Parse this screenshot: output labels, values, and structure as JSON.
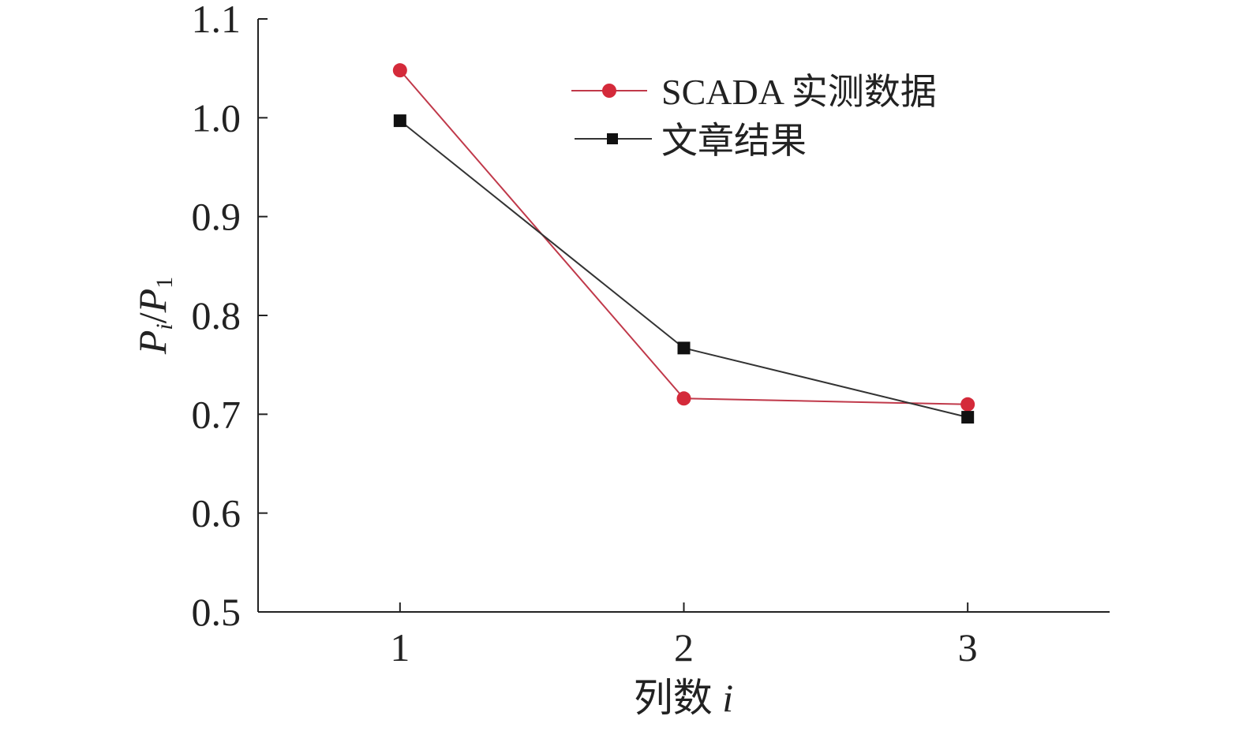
{
  "chart_data": {
    "type": "line",
    "x": [
      1,
      2,
      3
    ],
    "x_ticks": [
      "1",
      "2",
      "3"
    ],
    "xlim": [
      0.5,
      3.5
    ],
    "ylim": [
      0.5,
      1.1
    ],
    "y_ticks": [
      "0.5",
      "0.6",
      "0.7",
      "0.8",
      "0.9",
      "1.0",
      "1.1"
    ],
    "xlabel": {
      "text": "列数 ",
      "var": "i"
    },
    "ylabel": {
      "p": "P",
      "sub_i": "i",
      "slash": "/",
      "sub_1": "1"
    },
    "legend_position": "top-right",
    "series": [
      {
        "name": "SCADA 实测数据",
        "marker": "circle",
        "color": "#d42a3a",
        "line_color": "#c0394a",
        "values": [
          1.048,
          0.716,
          0.71
        ]
      },
      {
        "name": "文章结果",
        "marker": "square",
        "color": "#111111",
        "line_color": "#333333",
        "values": [
          0.997,
          0.767,
          0.697
        ]
      }
    ]
  }
}
